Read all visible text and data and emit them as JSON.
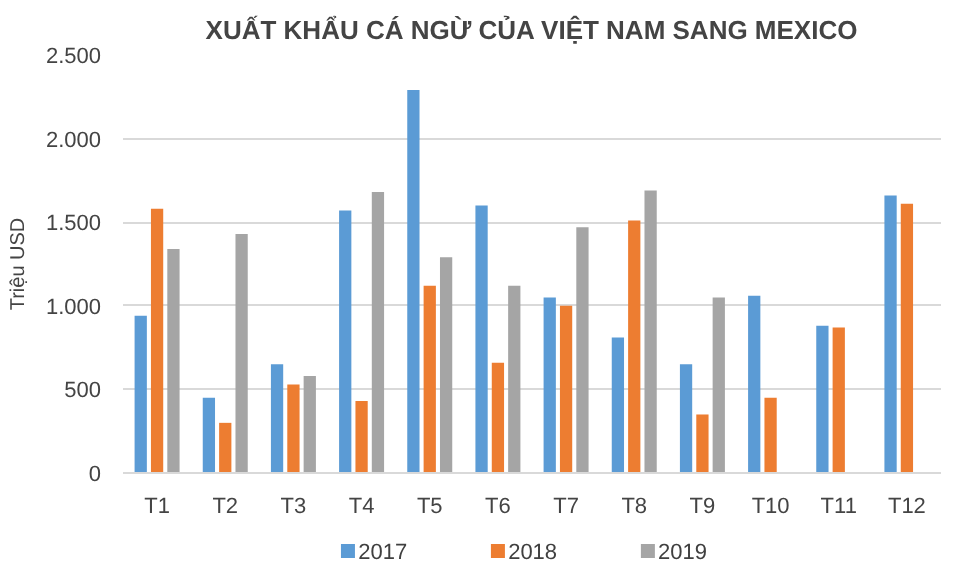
{
  "chart_data": {
    "type": "bar",
    "title": "XUẤT KHẨU CÁ NGỪ CỦA VIỆT NAM SANG MEXICO",
    "ylabel": "Triệu USD",
    "categories": [
      "T1",
      "T2",
      "T3",
      "T4",
      "T5",
      "T6",
      "T7",
      "T8",
      "T9",
      "T10",
      "T11",
      "T12"
    ],
    "series": [
      {
        "name": "2017",
        "color": "#5b9bd5",
        "values": [
          940,
          450,
          650,
          1570,
          2290,
          1600,
          1050,
          810,
          650,
          1060,
          880,
          1660
        ]
      },
      {
        "name": "2018",
        "color": "#ed7d31",
        "values": [
          1580,
          300,
          530,
          430,
          1120,
          660,
          1000,
          1510,
          350,
          450,
          870,
          1610
        ]
      },
      {
        "name": "2019",
        "color": "#a5a5a5",
        "values": [
          1340,
          1430,
          580,
          1680,
          1290,
          1120,
          1470,
          1690,
          1050,
          null,
          null,
          null
        ]
      }
    ],
    "ylim": [
      0,
      2500
    ],
    "yticks": [
      {
        "value": 0,
        "label": "0"
      },
      {
        "value": 500,
        "label": "500"
      },
      {
        "value": 1000,
        "label": "1.000"
      },
      {
        "value": 1500,
        "label": "1.500"
      },
      {
        "value": 2000,
        "label": "2.000"
      },
      {
        "value": 2500,
        "label": "2.500"
      }
    ],
    "grid": "y",
    "legend": "bottom"
  }
}
